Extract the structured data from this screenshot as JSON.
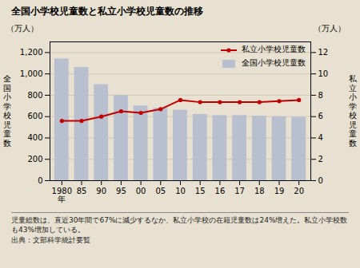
{
  "chart_data": {
    "type": "bar",
    "title": "全国小学校児童数と私立小学校児童数の推移",
    "background_color": "#e8e0d0",
    "categories": [
      "1980\n年",
      "85",
      "90",
      "95",
      "00",
      "05",
      "10",
      "15",
      "16",
      "17",
      "18",
      "19",
      "20"
    ],
    "series": [
      {
        "name": "全国小学校児童数",
        "type": "bar",
        "color": "#b8bfcf",
        "values": [
          1140,
          1060,
          900,
          800,
          700,
          680,
          660,
          620,
          610,
          610,
          605,
          600,
          595
        ]
      },
      {
        "name": "私立小学校児童数",
        "type": "line",
        "color": "#c00000",
        "marker": "circle",
        "axis": "y2",
        "values": [
          5.6,
          5.6,
          6.0,
          6.5,
          6.35,
          6.7,
          7.55,
          7.35,
          7.35,
          7.35,
          7.35,
          7.45,
          7.55
        ]
      }
    ],
    "ylabel": "全\n国\n小\n学\n校\n児\n童\n数",
    "y2label": "私\n立\n小\n学\n校\n児\n童\n数",
    "y_unit": "（万人）",
    "y2_unit": "（万人）",
    "ylim": [
      0,
      1300
    ],
    "yticks": [
      0,
      200,
      400,
      600,
      800,
      {
        "value": 1000,
        "label": "1,000"
      },
      {
        "value": 1200,
        "label": "1,200"
      }
    ],
    "y2lim": [
      0,
      13
    ],
    "y2ticks": [
      0,
      2,
      4,
      6,
      8,
      10,
      12
    ],
    "grid": true,
    "legend": "upper right",
    "notes": [
      "児童総数は、直近30年間で67%に減少するなか、私立小学校の在籍児童数は24%増えた。私立小学校数も43%増加している。",
      "出典：文部科学統計要覧"
    ]
  }
}
